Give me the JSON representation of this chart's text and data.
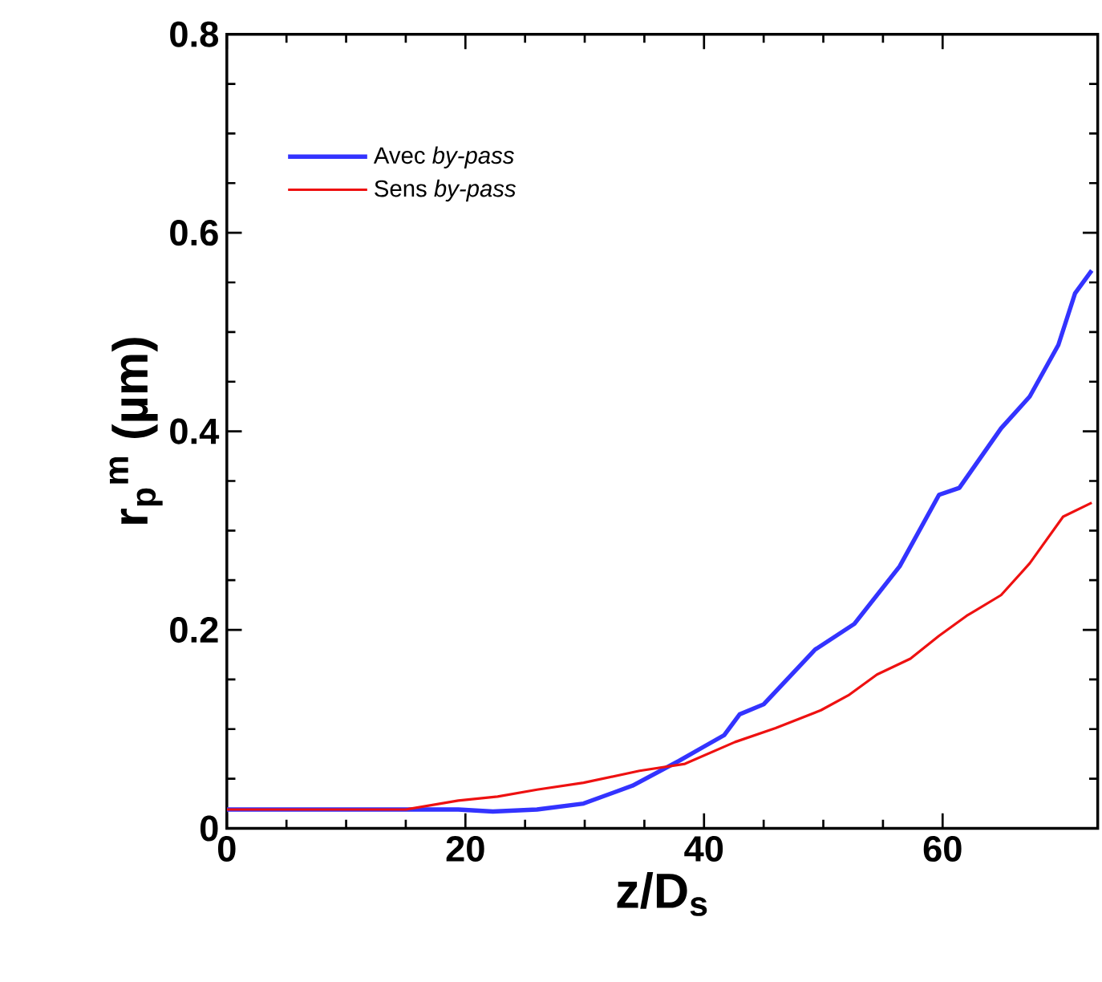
{
  "chart_data": {
    "type": "line",
    "xlabel": "z/D$_{s}$",
    "ylabel": "r$_{p}$$^{m}$ (µm)",
    "xlim": [
      0,
      73
    ],
    "ylim": [
      0,
      0.8
    ],
    "xticks": [
      0,
      20,
      40,
      60
    ],
    "yticks": [
      0,
      0.2,
      0.4,
      0.6,
      0.8
    ],
    "legend": "top left",
    "series": [
      {
        "name": "Avec *by-pass*",
        "color": "#3333ff",
        "x": [
          0,
          15,
          19.4,
          22.3,
          26,
          29.9,
          34,
          37.9,
          39.8,
          41.7,
          43,
          45,
          49.3,
          52.6,
          56.4,
          59.7,
          61.4,
          64.9,
          67.3,
          69.7,
          71.1,
          72.5
        ],
        "values": [
          0.019,
          0.019,
          0.019,
          0.017,
          0.019,
          0.025,
          0.043,
          0.068,
          0.081,
          0.094,
          0.115,
          0.125,
          0.18,
          0.206,
          0.264,
          0.336,
          0.343,
          0.403,
          0.435,
          0.487,
          0.539,
          0.562
        ]
      },
      {
        "name": "Sens *by-pass*",
        "color": "#ee1111",
        "x": [
          0,
          15,
          19.4,
          22.7,
          26,
          29.9,
          34.6,
          38.4,
          42.6,
          46,
          49.8,
          52.1,
          54.5,
          57.3,
          59.7,
          62,
          64.9,
          67.3,
          70.1,
          72.5
        ],
        "values": [
          0.019,
          0.019,
          0.028,
          0.032,
          0.039,
          0.046,
          0.058,
          0.065,
          0.087,
          0.101,
          0.119,
          0.134,
          0.155,
          0.171,
          0.194,
          0.214,
          0.235,
          0.267,
          0.314,
          0.328
        ]
      }
    ]
  }
}
